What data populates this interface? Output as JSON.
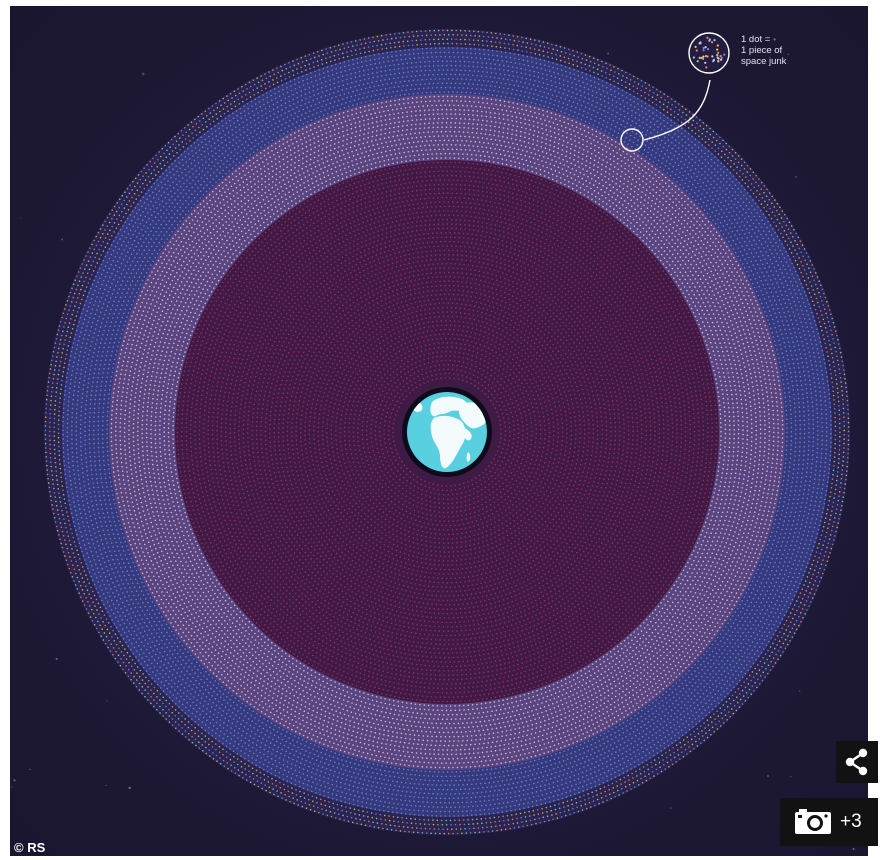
{
  "legend": {
    "lines": [
      "1 dot =",
      "1 piece of",
      "space junk"
    ]
  },
  "credit": "© RS",
  "gallery": {
    "count_label": "+3"
  },
  "icons": {
    "share": "share-icon",
    "camera": "camera-icon"
  },
  "colors": {
    "space": "#1f1b39",
    "outer_ring": "#3a3f88",
    "middle_ring": "#5f4a86",
    "inner_disc": "#421b48",
    "earth_ocean": "#58d0df",
    "earth_land": "#ffffff",
    "earth_border": "#0e0c1c",
    "dot_inner": "#a8306c",
    "dot_middle": "#e7c9e4",
    "dot_outer": "#7d86e8",
    "dot_edge_1": "#e88a6a",
    "dot_edge_2": "#8ad1d6",
    "dot_edge_3": "#e6c06b"
  }
}
